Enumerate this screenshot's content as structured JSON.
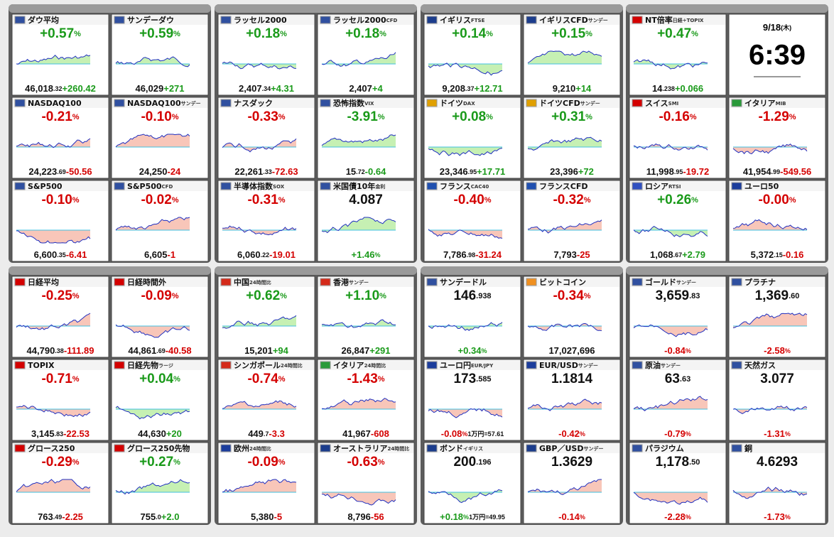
{
  "groups": [
    {
      "tiles": [
        {
          "name": "ダウ平均",
          "flag": "#3050a0",
          "head": "change",
          "color": "#1a9a1a",
          "big": "+0.57",
          "big_s": "%",
          "foot": "46,018",
          "foot_s": ".32",
          "foot2": "+260.42"
        },
        {
          "name": "サンデーダウ",
          "flag": "#3050a0",
          "head": "change",
          "color": "#1a9a1a",
          "big": "+0.59",
          "big_s": "%",
          "foot": "46,029",
          "foot2": "+271"
        },
        {
          "name": "NASDAQ100",
          "flag": "#3050a0",
          "head": "change",
          "color": "#d40000",
          "big": "-0.21",
          "big_s": "%",
          "foot": "24,223",
          "foot_s": ".69",
          "foot2": "-50.56"
        },
        {
          "name": "NASDAQ100",
          "sub": "サンデー",
          "flag": "#3050a0",
          "head": "change",
          "color": "#d40000",
          "big": "-0.10",
          "big_s": "%",
          "foot": "24,250",
          "foot2": "-24"
        },
        {
          "name": "S&P500",
          "flag": "#3050a0",
          "head": "change",
          "color": "#d40000",
          "big": "-0.10",
          "big_s": "%",
          "foot": "6,600",
          "foot_s": ".35",
          "foot2": "-6.41"
        },
        {
          "name": "S&P500",
          "sub": "CFD",
          "flag": "#3050a0",
          "head": "change",
          "color": "#d40000",
          "big": "-0.02",
          "big_s": "%",
          "foot": "6,605",
          "foot2": "-1"
        }
      ]
    },
    {
      "tiles": [
        {
          "name": "ラッセル2000",
          "flag": "#3050a0",
          "head": "change",
          "color": "#1a9a1a",
          "big": "+0.18",
          "big_s": "%",
          "foot": "2,407",
          "foot_s": ".34",
          "foot2": "+4.31"
        },
        {
          "name": "ラッセル2000",
          "sub": "CFD",
          "flag": "#3050a0",
          "head": "change",
          "color": "#1a9a1a",
          "big": "+0.18",
          "big_s": "%",
          "foot": "2,407",
          "foot2": "+4"
        },
        {
          "name": "ナスダック",
          "flag": "#3050a0",
          "head": "change",
          "color": "#d40000",
          "big": "-0.33",
          "big_s": "%",
          "foot": "22,261",
          "foot_s": ".33",
          "foot2": "-72.63"
        },
        {
          "name": "恐怖指数",
          "sub": "VIX",
          "flag": "#3050a0",
          "head": "change",
          "color": "#1a9a1a",
          "big": "-3.91",
          "big_s": "%",
          "foot": "15",
          "foot_s": ".72",
          "foot2": "-0.64"
        },
        {
          "name": "半導体指数",
          "sub": "SOX",
          "flag": "#3050a0",
          "head": "change",
          "color": "#d40000",
          "big": "-0.31",
          "big_s": "%",
          "foot": "6,060",
          "foot_s": ".22",
          "foot2": "-19.01"
        },
        {
          "name": "米国債10年",
          "sub": "金利",
          "flag": "#3050a0",
          "head": "price",
          "color": "#1a9a1a",
          "big": "4.087",
          "foot": "+1.46",
          "foot_s": "%"
        }
      ]
    },
    {
      "tiles": [
        {
          "name": "イギリス",
          "sub": "FTSE",
          "flag": "#1c3d8c",
          "head": "change",
          "color": "#1a9a1a",
          "big": "+0.14",
          "big_s": "%",
          "foot": "9,208",
          "foot_s": ".37",
          "foot2": "+12.71"
        },
        {
          "name": "イギリスCFD",
          "sub": "サンデー",
          "flag": "#1c3d8c",
          "head": "change",
          "color": "#1a9a1a",
          "big": "+0.15",
          "big_s": "%",
          "foot": "9,210",
          "foot2": "+14"
        },
        {
          "name": "ドイツ",
          "sub": "DAX",
          "flag": "#e0a000",
          "head": "change",
          "color": "#1a9a1a",
          "big": "+0.08",
          "big_s": "%",
          "foot": "23,346",
          "foot_s": ".95",
          "foot2": "+17.71"
        },
        {
          "name": "ドイツCFD",
          "sub": "サンデー",
          "flag": "#e0a000",
          "head": "change",
          "color": "#1a9a1a",
          "big": "+0.31",
          "big_s": "%",
          "foot": "23,396",
          "foot2": "+72"
        },
        {
          "name": "フランス",
          "sub": "CAC40",
          "flag": "#2050b0",
          "head": "change",
          "color": "#d40000",
          "big": "-0.40",
          "big_s": "%",
          "foot": "7,786",
          "foot_s": ".98",
          "foot2": "-31.24"
        },
        {
          "name": "フランスCFD",
          "flag": "#2050b0",
          "head": "change",
          "color": "#d40000",
          "big": "-0.32",
          "big_s": "%",
          "foot": "7,793",
          "foot2": "-25"
        }
      ]
    },
    {
      "tiles": [
        {
          "name": "NT倍率",
          "sub": "日経÷TOPIX",
          "flag": "#d40000",
          "head": "change",
          "color": "#1a9a1a",
          "big": "+0.47",
          "big_s": "%",
          "foot": "14",
          "foot_s": ".238",
          "foot2": "+0.066"
        },
        {
          "date": "9/18",
          "dow": "(木)",
          "time": "6:39"
        },
        {
          "name": "スイス",
          "sub": "SMI",
          "flag": "#d40000",
          "head": "change",
          "color": "#d40000",
          "big": "-0.16",
          "big_s": "%",
          "foot": "11,998",
          "foot_s": ".95",
          "foot2": "-19.72"
        },
        {
          "name": "イタリア",
          "sub": "MIB",
          "flag": "#2a9a3a",
          "head": "change",
          "color": "#d40000",
          "big": "-1.29",
          "big_s": "%",
          "foot": "41,954",
          "foot_s": ".99",
          "foot2": "-549.56"
        },
        {
          "name": "ロシア",
          "sub": "RTSI",
          "flag": "#3050c0",
          "head": "change",
          "color": "#1a9a1a",
          "big": "+0.26",
          "big_s": "%",
          "foot": "1,068",
          "foot_s": ".67",
          "foot2": "+2.79"
        },
        {
          "name": "ユーロ50",
          "flag": "#1c3d9c",
          "head": "change",
          "color": "#d40000",
          "big": "-0.00",
          "big_s": "%",
          "foot": "5,372",
          "foot_s": ".15",
          "foot2": "-0.16"
        }
      ]
    },
    {
      "tiles": [
        {
          "name": "日経平均",
          "flag": "#d40000",
          "head": "change",
          "color": "#d40000",
          "big": "-0.25",
          "big_s": "%",
          "foot": "44,790",
          "foot_s": ".38",
          "foot2": "-111.89"
        },
        {
          "name": "日経時間外",
          "flag": "#d40000",
          "head": "change",
          "color": "#d40000",
          "big": "-0.09",
          "big_s": "%",
          "foot": "44,861",
          "foot_s": ".69",
          "foot2": "-40.58"
        },
        {
          "name": "TOPIX",
          "flag": "#d40000",
          "head": "change",
          "color": "#d40000",
          "big": "-0.71",
          "big_s": "%",
          "foot": "3,145",
          "foot_s": ".83",
          "foot2": "-22.53"
        },
        {
          "name": "日経先物",
          "sub": "ラージ",
          "flag": "#d40000",
          "head": "change",
          "color": "#1a9a1a",
          "big": "+0.04",
          "big_s": "%",
          "foot": "44,630",
          "foot2": "+20"
        },
        {
          "name": "グロース250",
          "flag": "#d40000",
          "head": "change",
          "color": "#d40000",
          "big": "-0.29",
          "big_s": "%",
          "foot": "763",
          "foot_s": ".49",
          "foot2": "-2.25"
        },
        {
          "name": "グロース250先物",
          "flag": "#d40000",
          "head": "change",
          "color": "#1a9a1a",
          "big": "+0.27",
          "big_s": "%",
          "foot": "755",
          "foot_s": ".0",
          "foot2": "+2.0"
        }
      ]
    },
    {
      "tiles": [
        {
          "name": "中国",
          "sub": "24時間比",
          "flag": "#d42a1a",
          "head": "change",
          "color": "#1a9a1a",
          "big": "+0.62",
          "big_s": "%",
          "foot": "15,201",
          "foot2": "+94"
        },
        {
          "name": "香港",
          "sub": "サンデー",
          "flag": "#d42a1a",
          "head": "change",
          "color": "#1a9a1a",
          "big": "+1.10",
          "big_s": "%",
          "foot": "26,847",
          "foot2": "+291"
        },
        {
          "name": "シンガポール",
          "sub": "24時間比",
          "flag": "#d42a1a",
          "head": "change",
          "color": "#d40000",
          "big": "-0.74",
          "big_s": "%",
          "foot": "449",
          "foot_s": ".7",
          "foot2": "-3.3"
        },
        {
          "name": "イタリア",
          "sub": "24時間比",
          "flag": "#2a9a3a",
          "head": "change",
          "color": "#d40000",
          "big": "-1.43",
          "big_s": "%",
          "foot": "41,967",
          "foot2": "-608"
        },
        {
          "name": "欧州",
          "sub": "24時間比",
          "flag": "#1c3d9c",
          "head": "change",
          "color": "#d40000",
          "big": "-0.09",
          "big_s": "%",
          "foot": "5,380",
          "foot2": "-5"
        },
        {
          "name": "オーストラリア",
          "sub": "24時間比",
          "flag": "#1c3d8c",
          "head": "change",
          "color": "#d40000",
          "big": "-0.63",
          "big_s": "%",
          "foot": "8,796",
          "foot2": "-56"
        }
      ]
    },
    {
      "tiles": [
        {
          "name": "サンデードル",
          "flag": "#3050a0",
          "head": "price",
          "color": "#1a9a1a",
          "big": "146",
          "big_s": ".938",
          "foot": "+0.34",
          "foot_s": "%"
        },
        {
          "name": "ビットコイン",
          "flag": "#f09020",
          "head": "change",
          "color": "#d40000",
          "big": "-0.34",
          "big_s": "%",
          "foot": "17,027,696"
        },
        {
          "name": "ユーロ円",
          "sub": "EUR/JPY",
          "flag": "#1c3d9c",
          "head": "price",
          "color": "#d40000",
          "big": "173",
          "big_s": ".585",
          "foot": "-0.08",
          "foot_s": "%",
          "foot2": "1万円=57.61"
        },
        {
          "name": "EUR/USD",
          "sub": "サンデー",
          "flag": "#1c3d9c",
          "head": "price",
          "color": "#d40000",
          "big": "1.1814",
          "foot": "-0.42",
          "foot_s": "%"
        },
        {
          "name": "ボンド",
          "sub": "イギリス",
          "flag": "#1c3d8c",
          "head": "price",
          "color": "#1a9a1a",
          "big": "200",
          "big_s": ".196",
          "foot": "+0.18",
          "foot_s": "%",
          "foot2": "1万円=49.95"
        },
        {
          "name": "GBP／USD",
          "sub": "サンデー",
          "flag": "#1c3d8c",
          "head": "price",
          "color": "#d40000",
          "big": "1.3629",
          "foot": "-0.14",
          "foot_s": "%"
        }
      ]
    },
    {
      "tiles": [
        {
          "name": "ゴールド",
          "sub": "サンデー",
          "flag": "#3050a0",
          "head": "price",
          "color": "#d40000",
          "big": "3,659",
          "big_s": ".83",
          "foot": "-0.84",
          "foot_s": "%"
        },
        {
          "name": "プラチナ",
          "flag": "#3050a0",
          "head": "price",
          "color": "#d40000",
          "big": "1,369",
          "big_s": ".60",
          "foot": "-2.58",
          "foot_s": "%"
        },
        {
          "name": "原油",
          "sub": "サンデー",
          "flag": "#3050a0",
          "head": "price",
          "color": "#d40000",
          "big": "63",
          "big_s": ".63",
          "foot": "-0.79",
          "foot_s": "%"
        },
        {
          "name": "天然ガス",
          "flag": "#3050a0",
          "head": "price",
          "color": "#d40000",
          "big": "3.077",
          "foot": "-1.31",
          "foot_s": "%"
        },
        {
          "name": "パラジウム",
          "flag": "#3050a0",
          "head": "price",
          "color": "#d40000",
          "big": "1,178",
          "big_s": ".50",
          "foot": "-2.28",
          "foot_s": "%"
        },
        {
          "name": "銅",
          "flag": "#3050a0",
          "head": "price",
          "color": "#d40000",
          "big": "4.6293",
          "foot": "-1.73",
          "foot_s": "%"
        }
      ]
    }
  ]
}
